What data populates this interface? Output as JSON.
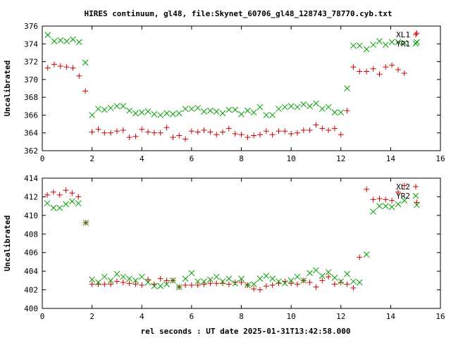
{
  "title": "HIRES continuum, gl48, file:Skynet_60706_gl48_128743_78770.cyb.txt",
  "xlabel": "rel seconds : UT date 2025-01-31T13:42:58.000",
  "colors": {
    "series_plus": "#cc0000",
    "series_x": "#00a000",
    "axis": "#000000"
  },
  "chart_data": [
    {
      "type": "scatter",
      "title": "",
      "xlabel": "",
      "ylabel": "Uncalibrated",
      "xlim": [
        0,
        16
      ],
      "ylim": [
        362,
        376
      ],
      "xticks": [
        0,
        2,
        4,
        6,
        8,
        10,
        12,
        14,
        16
      ],
      "yticks": [
        362,
        364,
        366,
        368,
        370,
        372,
        374,
        376
      ],
      "legend_position": "top-right",
      "series": [
        {
          "name": "XL1",
          "marker": "plus",
          "color": "#cc0000",
          "x": [
            0.22,
            0.48,
            0.73,
            0.98,
            1.23,
            1.48,
            1.73,
            2.0,
            2.25,
            2.5,
            2.75,
            3.0,
            3.25,
            3.5,
            3.75,
            4.0,
            4.25,
            4.5,
            4.75,
            5.0,
            5.25,
            5.5,
            5.75,
            6.0,
            6.25,
            6.5,
            6.75,
            7.0,
            7.25,
            7.5,
            7.75,
            8.0,
            8.25,
            8.5,
            8.75,
            9.0,
            9.25,
            9.5,
            9.75,
            10.0,
            10.25,
            10.5,
            10.75,
            11.0,
            11.25,
            11.5,
            11.75,
            12.0,
            12.25,
            12.5,
            12.75,
            13.03,
            13.3,
            13.55,
            13.8,
            14.05,
            14.3,
            14.55,
            15.05
          ],
          "y": [
            371.3,
            371.7,
            371.5,
            371.4,
            371.3,
            370.4,
            368.7,
            364.1,
            364.4,
            364.0,
            364.0,
            364.2,
            364.3,
            363.5,
            363.6,
            364.4,
            364.1,
            364.0,
            364.0,
            364.6,
            363.5,
            363.7,
            363.3,
            364.2,
            364.1,
            364.3,
            364.1,
            363.8,
            364.1,
            364.5,
            363.9,
            363.8,
            363.5,
            363.7,
            363.8,
            364.2,
            363.8,
            364.2,
            364.2,
            363.9,
            364.0,
            364.3,
            364.3,
            364.9,
            364.5,
            364.3,
            364.5,
            363.8,
            366.5,
            371.4,
            370.9,
            370.9,
            371.2,
            370.6,
            371.4,
            371.6,
            371.1,
            370.7,
            375.2
          ],
          "marker_size": 4
        },
        {
          "name": "YR1",
          "marker": "x",
          "color": "#00a000",
          "x": [
            0.22,
            0.48,
            0.73,
            0.98,
            1.23,
            1.48,
            1.73,
            2.0,
            2.25,
            2.5,
            2.75,
            3.0,
            3.25,
            3.5,
            3.75,
            4.0,
            4.25,
            4.5,
            4.75,
            5.0,
            5.25,
            5.5,
            5.75,
            6.0,
            6.25,
            6.5,
            6.75,
            7.0,
            7.25,
            7.5,
            7.75,
            8.0,
            8.25,
            8.5,
            8.75,
            9.0,
            9.25,
            9.5,
            9.75,
            10.0,
            10.25,
            10.5,
            10.75,
            11.0,
            11.25,
            11.5,
            11.75,
            12.0,
            12.25,
            12.5,
            12.75,
            13.03,
            13.3,
            13.55,
            13.8,
            14.05,
            14.3,
            14.55,
            15.05
          ],
          "y": [
            375.0,
            374.3,
            374.4,
            374.3,
            374.5,
            374.2,
            371.9,
            366.0,
            366.7,
            366.6,
            366.8,
            367.0,
            367.0,
            366.5,
            366.2,
            366.3,
            366.4,
            366.1,
            366.0,
            366.2,
            366.1,
            366.2,
            366.7,
            366.7,
            366.8,
            366.4,
            366.5,
            366.4,
            366.2,
            366.6,
            366.6,
            366.1,
            366.5,
            366.3,
            366.9,
            366.0,
            366.0,
            366.7,
            366.9,
            367.0,
            366.9,
            367.2,
            367.0,
            367.3,
            366.7,
            366.9,
            366.3,
            366.3,
            369.0,
            373.8,
            373.8,
            373.4,
            373.9,
            374.3,
            373.9,
            374.2,
            374.2,
            374.1,
            374.2
          ],
          "marker_size": 4
        }
      ]
    },
    {
      "type": "scatter",
      "title": "",
      "xlabel": "rel seconds : UT date 2025-01-31T13:42:58.000",
      "ylabel": "Uncalibrated",
      "xlim": [
        0,
        16
      ],
      "ylim": [
        400,
        414
      ],
      "xticks": [
        0,
        2,
        4,
        6,
        8,
        10,
        12,
        14,
        16
      ],
      "yticks": [
        400,
        402,
        404,
        406,
        408,
        410,
        412,
        414
      ],
      "legend_position": "top-right",
      "series": [
        {
          "name": "XL2",
          "marker": "plus",
          "color": "#cc0000",
          "x": [
            0.2,
            0.45,
            0.7,
            0.95,
            1.2,
            1.45,
            1.75,
            2.0,
            2.25,
            2.5,
            2.75,
            3.0,
            3.25,
            3.5,
            3.75,
            4.0,
            4.25,
            4.5,
            4.75,
            5.0,
            5.25,
            5.5,
            5.75,
            6.0,
            6.25,
            6.5,
            6.75,
            7.0,
            7.25,
            7.5,
            7.75,
            8.0,
            8.25,
            8.5,
            8.75,
            9.0,
            9.25,
            9.5,
            9.75,
            10.0,
            10.25,
            10.5,
            10.75,
            11.0,
            11.25,
            11.5,
            11.75,
            12.0,
            12.25,
            12.5,
            12.75,
            13.03,
            13.3,
            13.55,
            13.8,
            14.05,
            14.3,
            14.55,
            15.05
          ],
          "y": [
            412.2,
            412.5,
            412.2,
            412.7,
            412.4,
            412.0,
            409.2,
            402.6,
            402.6,
            402.6,
            402.6,
            402.9,
            402.8,
            402.7,
            402.6,
            402.5,
            403.1,
            402.6,
            403.2,
            403.0,
            403.0,
            402.3,
            402.5,
            402.5,
            402.5,
            402.6,
            402.7,
            402.7,
            402.7,
            402.6,
            402.8,
            402.8,
            402.5,
            402.1,
            402.0,
            402.4,
            402.5,
            402.7,
            402.9,
            402.7,
            402.6,
            403.0,
            402.8,
            402.3,
            403.0,
            403.4,
            402.6,
            402.8,
            402.6,
            402.2,
            405.5,
            412.8,
            411.7,
            411.8,
            411.7,
            411.6,
            412.5,
            413.2,
            411.4
          ],
          "marker_size": 4
        },
        {
          "name": "YR2",
          "marker": "x",
          "color": "#00a000",
          "x": [
            0.2,
            0.45,
            0.7,
            0.95,
            1.2,
            1.45,
            1.75,
            2.0,
            2.25,
            2.5,
            2.75,
            3.0,
            3.25,
            3.5,
            3.75,
            4.0,
            4.25,
            4.5,
            4.75,
            5.0,
            5.25,
            5.5,
            5.75,
            6.0,
            6.25,
            6.5,
            6.75,
            7.0,
            7.25,
            7.5,
            7.75,
            8.0,
            8.25,
            8.5,
            8.75,
            9.0,
            9.25,
            9.5,
            9.75,
            10.0,
            10.25,
            10.5,
            10.75,
            11.0,
            11.25,
            11.5,
            11.75,
            12.0,
            12.25,
            12.5,
            12.75,
            13.03,
            13.3,
            13.55,
            13.8,
            14.05,
            14.3,
            14.55,
            15.05
          ],
          "y": [
            411.3,
            410.8,
            410.8,
            411.2,
            411.5,
            411.3,
            409.2,
            403.1,
            402.8,
            403.4,
            403.0,
            403.7,
            403.4,
            403.2,
            403.0,
            403.4,
            402.8,
            402.4,
            402.4,
            402.6,
            403.0,
            402.3,
            403.2,
            403.8,
            402.9,
            402.9,
            403.1,
            403.4,
            402.9,
            403.2,
            402.7,
            403.2,
            402.5,
            402.6,
            403.2,
            403.5,
            403.2,
            402.9,
            402.7,
            403.0,
            403.4,
            403.0,
            403.8,
            404.1,
            403.5,
            403.9,
            403.3,
            402.9,
            403.7,
            402.9,
            402.8,
            405.8,
            410.4,
            411.0,
            411.0,
            410.9,
            411.2,
            411.6,
            411.1
          ],
          "marker_size": 4
        }
      ]
    }
  ]
}
